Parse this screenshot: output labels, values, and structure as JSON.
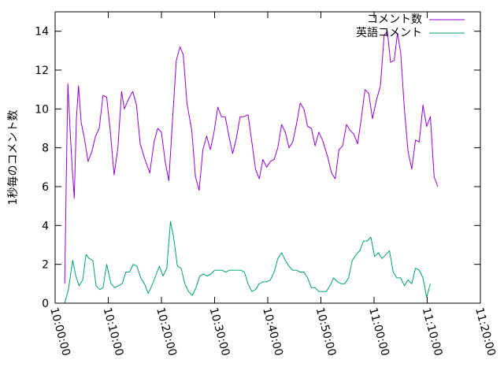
{
  "chart_data": {
    "type": "line",
    "title": "",
    "xlabel": "",
    "ylabel": "1秒毎のコメント数",
    "ylim": [
      0,
      15
    ],
    "yticks": [
      0,
      2,
      4,
      6,
      8,
      10,
      12,
      14
    ],
    "xlim_minutes": [
      0,
      80
    ],
    "xticks": [
      {
        "minute": 0,
        "label": "10:00:00"
      },
      {
        "minute": 10,
        "label": "10:10:00"
      },
      {
        "minute": 20,
        "label": "10:20:00"
      },
      {
        "minute": 30,
        "label": "10:30:00"
      },
      {
        "minute": 40,
        "label": "10:40:00"
      },
      {
        "minute": 50,
        "label": "10:50:00"
      },
      {
        "minute": 60,
        "label": "11:00:00"
      },
      {
        "minute": 70,
        "label": "11:10:00"
      },
      {
        "minute": 80,
        "label": "11:20:00"
      }
    ],
    "grid": false,
    "legend_position": "top-right",
    "series": [
      {
        "name": "コメント数",
        "color": "#9400d3",
        "points": [
          [
            1.8,
            1.0
          ],
          [
            2.1,
            6.5
          ],
          [
            2.4,
            11.3
          ],
          [
            2.8,
            9.0
          ],
          [
            3.2,
            7.0
          ],
          [
            3.6,
            5.4
          ],
          [
            4.0,
            9.5
          ],
          [
            4.4,
            11.2
          ],
          [
            4.9,
            9.3
          ],
          [
            5.5,
            8.5
          ],
          [
            6.2,
            7.3
          ],
          [
            6.9,
            7.8
          ],
          [
            7.6,
            8.6
          ],
          [
            8.3,
            9.0
          ],
          [
            9.0,
            10.7
          ],
          [
            9.7,
            10.6
          ],
          [
            10.4,
            8.8
          ],
          [
            11.1,
            6.6
          ],
          [
            11.8,
            8.0
          ],
          [
            12.5,
            10.9
          ],
          [
            13.0,
            10.0
          ],
          [
            13.8,
            10.5
          ],
          [
            14.6,
            10.9
          ],
          [
            15.3,
            10.2
          ],
          [
            16.0,
            8.2
          ],
          [
            16.9,
            7.4
          ],
          [
            17.8,
            6.7
          ],
          [
            18.6,
            8.3
          ],
          [
            19.3,
            9.0
          ],
          [
            20.0,
            8.8
          ],
          [
            20.7,
            7.3
          ],
          [
            21.4,
            6.3
          ],
          [
            22.1,
            9.5
          ],
          [
            22.8,
            12.5
          ],
          [
            23.5,
            13.2
          ],
          [
            24.1,
            12.8
          ],
          [
            24.8,
            10.3
          ],
          [
            25.7,
            8.9
          ],
          [
            26.4,
            6.5
          ],
          [
            27.1,
            5.8
          ],
          [
            27.8,
            7.9
          ],
          [
            28.5,
            8.6
          ],
          [
            29.2,
            7.9
          ],
          [
            29.9,
            8.8
          ],
          [
            30.6,
            10.1
          ],
          [
            31.3,
            9.6
          ],
          [
            32.0,
            9.6
          ],
          [
            32.7,
            8.6
          ],
          [
            33.4,
            7.7
          ],
          [
            34.1,
            8.5
          ],
          [
            34.8,
            9.6
          ],
          [
            35.5,
            9.6
          ],
          [
            36.3,
            9.7
          ],
          [
            37.0,
            8.3
          ],
          [
            37.7,
            6.9
          ],
          [
            38.4,
            6.4
          ],
          [
            39.1,
            7.4
          ],
          [
            39.8,
            7.0
          ],
          [
            40.5,
            7.3
          ],
          [
            41.2,
            7.4
          ],
          [
            41.9,
            8.0
          ],
          [
            42.6,
            9.2
          ],
          [
            43.3,
            8.8
          ],
          [
            44.0,
            8.0
          ],
          [
            44.7,
            8.3
          ],
          [
            45.4,
            9.2
          ],
          [
            46.1,
            10.3
          ],
          [
            46.8,
            10.0
          ],
          [
            47.5,
            9.1
          ],
          [
            48.2,
            9.0
          ],
          [
            48.9,
            8.1
          ],
          [
            49.6,
            8.8
          ],
          [
            50.3,
            8.4
          ],
          [
            51.2,
            7.6
          ],
          [
            52.0,
            6.7
          ],
          [
            52.7,
            6.4
          ],
          [
            53.4,
            7.9
          ],
          [
            54.1,
            8.1
          ],
          [
            54.8,
            9.2
          ],
          [
            55.5,
            8.9
          ],
          [
            56.2,
            8.7
          ],
          [
            56.9,
            8.2
          ],
          [
            57.6,
            9.5
          ],
          [
            58.3,
            11.0
          ],
          [
            59.0,
            10.8
          ],
          [
            59.7,
            9.5
          ],
          [
            60.4,
            10.4
          ],
          [
            61.2,
            11.2
          ],
          [
            61.9,
            13.8
          ],
          [
            62.5,
            14.0
          ],
          [
            63.1,
            12.4
          ],
          [
            63.8,
            12.5
          ],
          [
            64.4,
            13.9
          ],
          [
            65.0,
            12.9
          ],
          [
            65.7,
            10.0
          ],
          [
            66.4,
            7.8
          ],
          [
            67.1,
            6.9
          ],
          [
            67.8,
            8.4
          ],
          [
            68.5,
            8.3
          ],
          [
            69.2,
            10.2
          ],
          [
            69.9,
            9.1
          ],
          [
            70.6,
            9.6
          ],
          [
            71.3,
            6.5
          ],
          [
            72.0,
            6.0
          ]
        ]
      },
      {
        "name": "英語コメント",
        "color": "#009e73",
        "points": [
          [
            1.8,
            0.0
          ],
          [
            2.5,
            0.7
          ],
          [
            3.3,
            2.2
          ],
          [
            3.9,
            1.4
          ],
          [
            4.5,
            0.9
          ],
          [
            5.2,
            1.2
          ],
          [
            5.8,
            2.5
          ],
          [
            6.4,
            2.3
          ],
          [
            7.1,
            2.2
          ],
          [
            7.7,
            0.9
          ],
          [
            8.4,
            0.7
          ],
          [
            9.0,
            0.8
          ],
          [
            9.7,
            2.0
          ],
          [
            10.5,
            1.0
          ],
          [
            11.2,
            0.8
          ],
          [
            11.9,
            0.9
          ],
          [
            12.6,
            1.0
          ],
          [
            13.3,
            1.6
          ],
          [
            14.0,
            1.6
          ],
          [
            14.7,
            2.0
          ],
          [
            15.4,
            1.9
          ],
          [
            16.1,
            1.3
          ],
          [
            16.8,
            1.0
          ],
          [
            17.5,
            0.5
          ],
          [
            18.2,
            0.9
          ],
          [
            18.9,
            1.4
          ],
          [
            19.6,
            1.9
          ],
          [
            20.3,
            1.4
          ],
          [
            21.0,
            1.8
          ],
          [
            21.7,
            4.2
          ],
          [
            22.3,
            3.4
          ],
          [
            23.0,
            1.9
          ],
          [
            23.7,
            1.8
          ],
          [
            24.4,
            1.0
          ],
          [
            25.1,
            0.6
          ],
          [
            25.8,
            0.4
          ],
          [
            26.5,
            0.8
          ],
          [
            27.2,
            1.4
          ],
          [
            27.9,
            1.5
          ],
          [
            28.6,
            1.4
          ],
          [
            29.3,
            1.5
          ],
          [
            30.0,
            1.7
          ],
          [
            30.7,
            1.7
          ],
          [
            31.4,
            1.7
          ],
          [
            32.1,
            1.6
          ],
          [
            32.8,
            1.7
          ],
          [
            33.5,
            1.7
          ],
          [
            34.2,
            1.7
          ],
          [
            34.9,
            1.7
          ],
          [
            35.6,
            1.6
          ],
          [
            36.3,
            1.0
          ],
          [
            37.0,
            0.6
          ],
          [
            37.7,
            0.7
          ],
          [
            38.4,
            1.0
          ],
          [
            39.1,
            1.1
          ],
          [
            39.8,
            1.1
          ],
          [
            40.5,
            1.2
          ],
          [
            41.2,
            1.6
          ],
          [
            41.9,
            2.3
          ],
          [
            42.6,
            2.6
          ],
          [
            43.3,
            2.2
          ],
          [
            44.0,
            1.9
          ],
          [
            44.7,
            1.7
          ],
          [
            45.4,
            1.7
          ],
          [
            46.1,
            1.6
          ],
          [
            46.8,
            1.6
          ],
          [
            47.5,
            1.3
          ],
          [
            48.2,
            0.8
          ],
          [
            48.9,
            0.8
          ],
          [
            49.6,
            0.6
          ],
          [
            50.3,
            0.6
          ],
          [
            51.0,
            0.6
          ],
          [
            51.7,
            0.9
          ],
          [
            52.4,
            1.3
          ],
          [
            53.1,
            1.1
          ],
          [
            53.8,
            1.0
          ],
          [
            54.5,
            1.0
          ],
          [
            55.2,
            1.3
          ],
          [
            55.9,
            2.2
          ],
          [
            56.6,
            2.5
          ],
          [
            57.3,
            2.7
          ],
          [
            58.0,
            3.2
          ],
          [
            58.7,
            3.2
          ],
          [
            59.4,
            3.4
          ],
          [
            60.1,
            2.4
          ],
          [
            60.8,
            2.6
          ],
          [
            61.5,
            2.3
          ],
          [
            62.2,
            2.5
          ],
          [
            62.9,
            2.7
          ],
          [
            63.6,
            1.6
          ],
          [
            64.3,
            1.3
          ],
          [
            65.0,
            1.3
          ],
          [
            65.7,
            0.9
          ],
          [
            66.4,
            1.2
          ],
          [
            67.1,
            1.0
          ],
          [
            67.8,
            1.8
          ],
          [
            68.5,
            1.7
          ],
          [
            69.2,
            1.3
          ],
          [
            69.9,
            0.3
          ],
          [
            70.6,
            1.0
          ]
        ]
      }
    ]
  }
}
